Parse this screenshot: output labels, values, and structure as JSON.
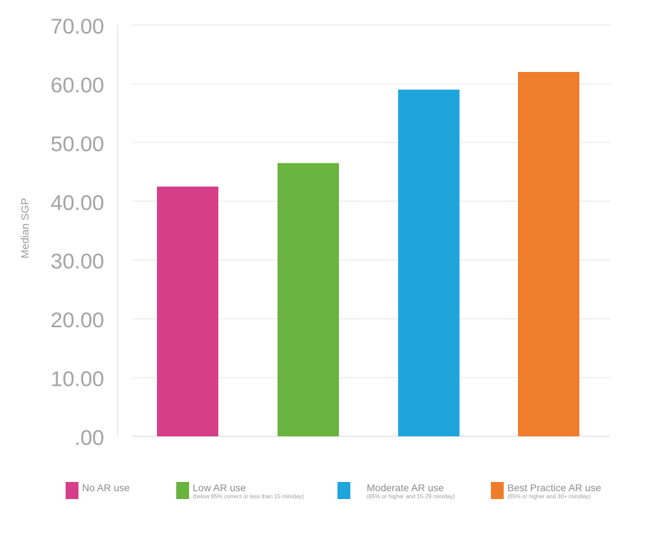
{
  "chart_data": {
    "type": "bar",
    "ylabel": "Median SGP",
    "ylim": [
      0,
      70
    ],
    "ytick_values": [
      0,
      10,
      20,
      30,
      40,
      50,
      60,
      70
    ],
    "ytick_labels": [
      ".00",
      "10.00",
      "20.00",
      "30.00",
      "40.00",
      "50.00",
      "60.00",
      "70.00"
    ],
    "grid": true,
    "legend_position": "bottom",
    "series": [
      {
        "name": "No AR use",
        "value": 42.5,
        "color": "#d63f87",
        "note": ""
      },
      {
        "name": "Low AR use",
        "value": 46.5,
        "color": "#6ab33e",
        "note": "(below 85% correct or less than 15 min/day)"
      },
      {
        "name": "Moderate AR use",
        "value": 59,
        "color": "#1ea6dc",
        "note": "(85% or higher and 15-29 min/day)"
      },
      {
        "name": "Best Practice AR use",
        "value": 62,
        "color": "#f07d2c",
        "note": "(85% or higher and 30+ min/day)"
      }
    ]
  }
}
